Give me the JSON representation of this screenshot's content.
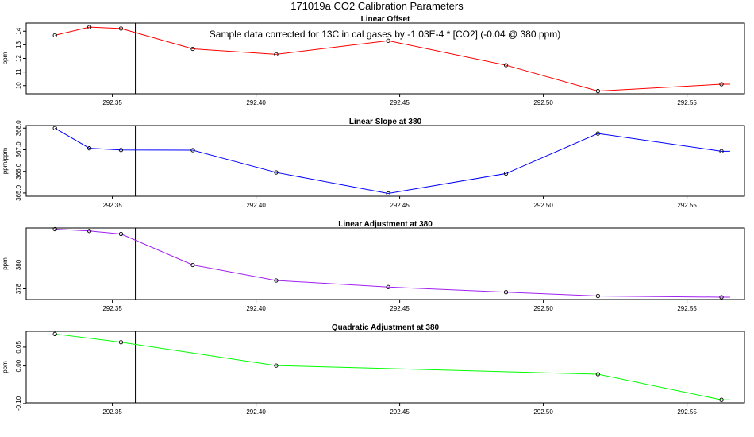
{
  "figure_title": "171019a   CO2 Calibration Parameters",
  "chart_data": [
    {
      "type": "line",
      "title": "Linear Offset",
      "ylabel": "ppm",
      "xlabel": "",
      "annotation": "Sample data corrected for 13C in cal gases by -1.03E-4 * [CO2] (-0.04 @ 380 ppm)",
      "color": "#ff0000",
      "x": [
        292.33,
        292.342,
        292.353,
        292.378,
        292.407,
        292.446,
        292.487,
        292.519,
        292.562
      ],
      "y": [
        13.7,
        14.3,
        14.2,
        12.7,
        12.3,
        13.3,
        11.5,
        9.6,
        10.1
      ],
      "line_end_x": 292.565,
      "marker_count": 9,
      "xlim": [
        292.32,
        292.57
      ],
      "ylim": [
        9.4,
        14.6
      ],
      "xticks": [
        292.35,
        292.4,
        292.45,
        292.5,
        292.55
      ],
      "xtick_labels": [
        "292.35",
        "292.40",
        "292.45",
        "292.50",
        "292.55"
      ],
      "yticks": [
        10,
        11,
        12,
        13,
        14
      ],
      "ytick_labels": [
        "10",
        "11",
        "12",
        "13",
        "14"
      ],
      "vline_x": 292.358
    },
    {
      "type": "line",
      "title": "Linear Slope at 380",
      "ylabel": "ppm/ppm",
      "xlabel": "",
      "color": "#0000ff",
      "x": [
        292.33,
        292.342,
        292.353,
        292.378,
        292.407,
        292.446,
        292.487,
        292.519,
        292.562
      ],
      "y": [
        368.0,
        367.07,
        366.99,
        366.98,
        365.95,
        364.98,
        365.9,
        367.75,
        366.93
      ],
      "line_end_x": 292.565,
      "marker_count": 9,
      "xlim": [
        292.32,
        292.57
      ],
      "ylim": [
        364.85,
        368.12
      ],
      "xticks": [
        292.35,
        292.4,
        292.45,
        292.5,
        292.55
      ],
      "xtick_labels": [
        "292.35",
        "292.40",
        "292.45",
        "292.50",
        "292.55"
      ],
      "yticks": [
        365.0,
        366.0,
        367.0,
        368.0
      ],
      "ytick_labels": [
        "365.0",
        "366.0",
        "367.0",
        "368.0"
      ],
      "vline_x": 292.358
    },
    {
      "type": "line",
      "title": "Linear Adjustment at 380",
      "ylabel": "ppm",
      "xlabel": "",
      "color": "#a020f0",
      "x": [
        292.33,
        292.342,
        292.353,
        292.378,
        292.407,
        292.446,
        292.487,
        292.519,
        292.562
      ],
      "y": [
        383.0,
        382.85,
        382.6,
        380.0,
        378.7,
        378.15,
        377.72,
        377.4,
        377.3
      ],
      "line_end_x": 292.565,
      "marker_count": 9,
      "xlim": [
        292.32,
        292.57
      ],
      "ylim": [
        377.1,
        383.1
      ],
      "xticks": [
        292.35,
        292.4,
        292.45,
        292.5,
        292.55
      ],
      "xtick_labels": [
        "292.35",
        "292.40",
        "292.45",
        "292.50",
        "292.55"
      ],
      "yticks": [
        378,
        380
      ],
      "ytick_labels": [
        "378",
        "380"
      ],
      "vline_x": 292.358
    },
    {
      "type": "line",
      "title": "Quadratic Adjustment at 380",
      "ylabel": "ppm",
      "xlabel": "",
      "color": "#00ff00",
      "x": [
        292.33,
        292.353,
        292.407,
        292.519,
        292.562
      ],
      "y": [
        0.085,
        0.063,
        0.001,
        -0.022,
        -0.09
      ],
      "line_end_x": 292.565,
      "marker_count": 5,
      "xlim": [
        292.32,
        292.57
      ],
      "ylim": [
        -0.098,
        0.092
      ],
      "xticks": [
        292.35,
        292.4,
        292.45,
        292.5,
        292.55
      ],
      "xtick_labels": [
        "292.35",
        "292.40",
        "292.45",
        "292.50",
        "292.55"
      ],
      "yticks": [
        -0.1,
        0.0,
        0.05
      ],
      "ytick_labels": [
        "-0.10",
        "0.00",
        "0.05"
      ],
      "vline_x": 292.358
    }
  ]
}
